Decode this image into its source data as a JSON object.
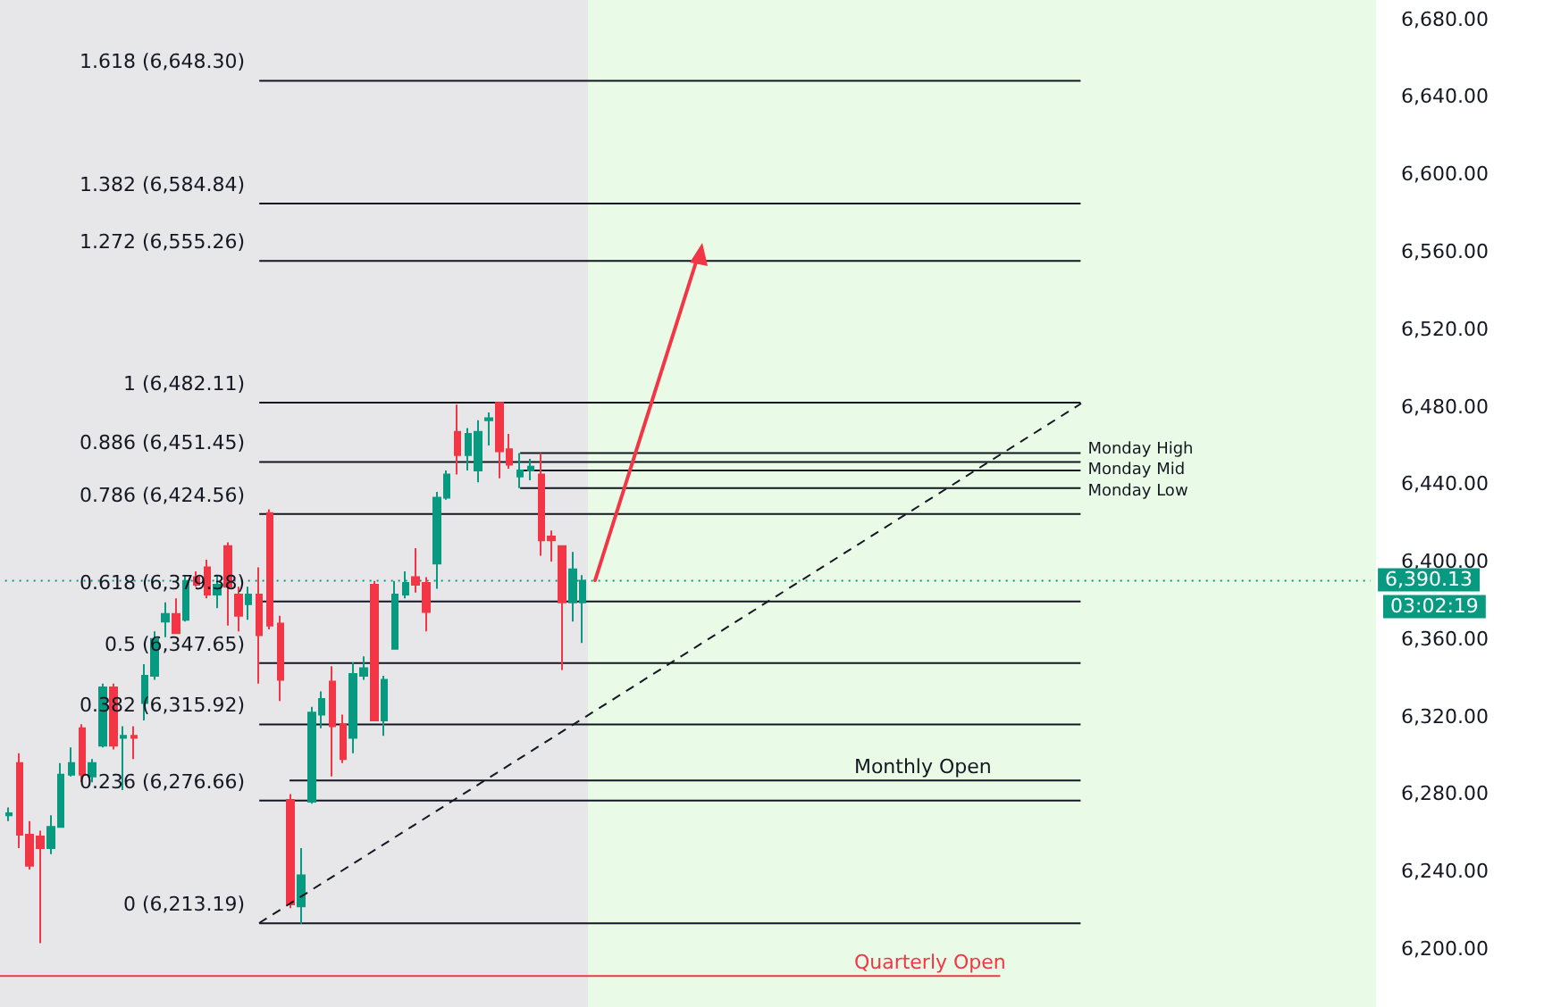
{
  "chart_data": {
    "type": "candlestick",
    "ylim": [
      6170,
      6690
    ],
    "tick_labels": "y",
    "categories": [
      null,
      null,
      null,
      null,
      null,
      null,
      null,
      null,
      null,
      null,
      null,
      null,
      null,
      null,
      null,
      null,
      null,
      null,
      null,
      null,
      null,
      null,
      null,
      null,
      null,
      null,
      null,
      null,
      null,
      null,
      null,
      null,
      null,
      null,
      null,
      null,
      null,
      null,
      null,
      null,
      null,
      null,
      null,
      null,
      null,
      null,
      null,
      null,
      null,
      null,
      null,
      null,
      null,
      null,
      null,
      null,
      null,
      null,
      null,
      null,
      null,
      null,
      null,
      null,
      null,
      null,
      null,
      null,
      null,
      null,
      null,
      null,
      null,
      null,
      null,
      null,
      null,
      null,
      null,
      null,
      null,
      null,
      null,
      null,
      null,
      null,
      null,
      null,
      null,
      null,
      null,
      null,
      null,
      null,
      null,
      null,
      null,
      null,
      null,
      null,
      null,
      null,
      null,
      null,
      null,
      null,
      null,
      null,
      null,
      null,
      null,
      null,
      null,
      null,
      null,
      null,
      null,
      null,
      null,
      null,
      null,
      null,
      null,
      null,
      null,
      null,
      null,
      null,
      null,
      null,
      null
    ],
    "yticks": [
      {
        "value": 6200,
        "label": "6,200.00"
      },
      {
        "value": 6240,
        "label": "6,240.00"
      },
      {
        "value": 6280,
        "label": "6,280.00"
      },
      {
        "value": 6320,
        "label": "6,320.00"
      },
      {
        "value": 6360,
        "label": "6,360.00"
      },
      {
        "value": 6400,
        "label": "6,400.00"
      },
      {
        "value": 6440,
        "label": "6,440.00"
      },
      {
        "value": 6480,
        "label": "6,480.00"
      },
      {
        "value": 6520,
        "label": "6,520.00"
      },
      {
        "value": 6560,
        "label": "6,560.00"
      },
      {
        "value": 6600,
        "label": "6,600.00"
      },
      {
        "value": 6640,
        "label": "6,640.00"
      },
      {
        "value": 6680,
        "label": "6,680.00"
      }
    ],
    "ohlc": [
      [
        6269,
        6273,
        6266,
        6270
      ],
      [
        6296,
        6301,
        6252,
        6259
      ],
      [
        6259,
        6266,
        6241,
        6243
      ],
      [
        6258,
        6261,
        6203,
        6252
      ],
      [
        6252,
        6269,
        6249,
        6263
      ],
      [
        6263,
        6296,
        6263,
        6290
      ],
      [
        6290,
        6304,
        6289,
        6296
      ],
      [
        6314,
        6316,
        6286,
        6290
      ],
      [
        6289,
        6298,
        6286,
        6296
      ],
      [
        6305,
        6337,
        6304,
        6335
      ],
      [
        6335,
        6337,
        6303,
        6305
      ],
      [
        6309,
        6315,
        6282,
        6310
      ],
      [
        6310,
        6315,
        6298,
        6309
      ],
      [
        6327,
        6347,
        6318,
        6341
      ],
      [
        6341,
        6364,
        6339,
        6360
      ],
      [
        6369,
        6379,
        6361,
        6373
      ],
      [
        6373,
        6381,
        6363,
        6363
      ],
      [
        6370,
        6393,
        6369,
        6390
      ],
      [
        6392,
        6395,
        6387,
        6388
      ],
      [
        6397,
        6401,
        6381,
        6383
      ],
      [
        6383,
        6393,
        6376,
        6388
      ],
      [
        6408,
        6410,
        6367,
        6387
      ],
      [
        6383,
        6387,
        6364,
        6372
      ],
      [
        6378,
        6387,
        6370,
        6383
      ],
      [
        6383,
        6397,
        6337,
        6362
      ],
      [
        6425,
        6427,
        6365,
        6367
      ],
      [
        6368,
        6372,
        6328,
        6339
      ],
      [
        6277,
        6280,
        6221,
        6223
      ],
      [
        6222,
        6252,
        6213,
        6238
      ],
      [
        6276,
        6325,
        6275,
        6322
      ],
      [
        6321,
        6333,
        6314,
        6329
      ],
      [
        6338,
        6346,
        6289,
        6315
      ],
      [
        6316,
        6321,
        6296,
        6298
      ],
      [
        6309,
        6348,
        6301,
        6342
      ],
      [
        6341,
        6351,
        6339,
        6345
      ],
      [
        6388,
        6390,
        6318,
        6318
      ],
      [
        6318,
        6341,
        6310,
        6339
      ],
      [
        6355,
        6390,
        6355,
        6383
      ],
      [
        6383,
        6395,
        6381,
        6389
      ],
      [
        6392,
        6407,
        6384,
        6388
      ],
      [
        6389,
        6392,
        6364,
        6374
      ],
      [
        6399,
        6436,
        6386,
        6433
      ],
      [
        6433,
        6447,
        6432,
        6445
      ],
      [
        6467,
        6481,
        6445,
        6455
      ],
      [
        6455,
        6469,
        6447,
        6466
      ],
      [
        6447,
        6473,
        6441,
        6467
      ],
      [
        6473,
        6477,
        6460,
        6474
      ],
      [
        6482,
        6482,
        6443,
        6457
      ],
      [
        6458,
        6466,
        6448,
        6450
      ],
      [
        6444,
        6456,
        6438,
        6447
      ],
      [
        6447,
        6453,
        6442,
        6449
      ],
      [
        6445,
        6456,
        6403,
        6411
      ],
      [
        6413,
        6416,
        6400,
        6411
      ],
      [
        6408,
        6408,
        6344,
        6379
      ],
      [
        6379,
        6405,
        6369,
        6396
      ],
      [
        6379,
        6393,
        6358,
        6390.13
      ],
      null,
      null,
      null,
      null,
      null,
      null,
      null,
      null,
      null,
      null,
      null,
      null,
      null,
      null,
      null,
      null,
      null,
      null,
      null,
      null,
      null,
      null,
      null,
      null,
      null,
      null,
      null,
      null,
      null,
      null,
      null,
      null,
      null,
      null,
      null,
      null,
      null,
      null,
      null,
      null,
      null,
      null,
      null,
      null,
      null,
      null,
      null,
      null,
      null,
      null,
      null,
      null,
      null,
      null,
      null,
      null,
      null,
      null,
      null,
      null,
      null,
      null,
      null,
      null,
      null,
      null,
      null,
      null,
      null,
      null,
      null,
      null,
      null,
      null,
      null
    ],
    "ref_lines": [
      {
        "axis": "y",
        "value": 6648.3,
        "label": "1.618 (6,648.30)",
        "color": "#131722"
      },
      {
        "axis": "y",
        "value": 6584.84,
        "label": "1.382 (6,584.84)",
        "color": "#131722"
      },
      {
        "axis": "y",
        "value": 6555.26,
        "label": "1.272 (6,555.26)",
        "color": "#131722"
      },
      {
        "axis": "y",
        "value": 6482.11,
        "label": "1 (6,482.11)",
        "color": "#131722"
      },
      {
        "axis": "y",
        "value": 6451.45,
        "label": "0.886 (6,451.45)",
        "color": "#131722"
      },
      {
        "axis": "y",
        "value": 6424.56,
        "label": "0.786 (6,424.56)",
        "color": "#131722"
      },
      {
        "axis": "y",
        "value": 6379.38,
        "label": "0.618 (6,379.38)",
        "color": "#131722"
      },
      {
        "axis": "y",
        "value": 6347.65,
        "label": "0.5 (6,347.65)",
        "color": "#131722"
      },
      {
        "axis": "y",
        "value": 6315.92,
        "label": "0.382 (6,315.92)",
        "color": "#131722"
      },
      {
        "axis": "y",
        "value": 6276.66,
        "label": "0.236 (6,276.66)",
        "color": "#131722"
      },
      {
        "axis": "y",
        "value": 6213.19,
        "label": "0 (6,213.19)",
        "color": "#131722"
      },
      {
        "axis": "y",
        "value": 6456,
        "label": "Monday High",
        "color": "#131722"
      },
      {
        "axis": "y",
        "value": 6447,
        "label": "Monday Mid",
        "color": "#131722"
      },
      {
        "axis": "y",
        "value": 6438,
        "label": "Monday Low",
        "color": "#131722"
      },
      {
        "axis": "y",
        "value": 6287,
        "label": "Monthly Open",
        "color": "#131722"
      },
      {
        "axis": "y",
        "value": 6186,
        "label": "Quarterly Open",
        "color": "#f23645"
      },
      {
        "axis": "y",
        "value": 6390.13,
        "label": "6,390.13",
        "color": "#089981",
        "line_style": "dotted"
      }
    ],
    "annotations": [
      "03:02:19"
    ]
  }
}
